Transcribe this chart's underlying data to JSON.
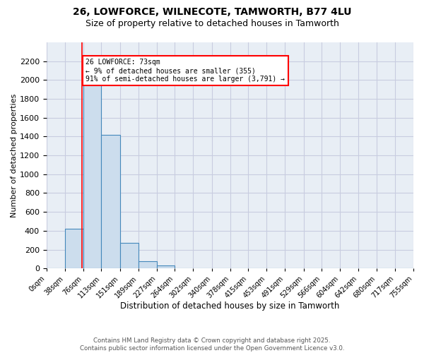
{
  "title_line1": "26, LOWFORCE, WILNECOTE, TAMWORTH, B77 4LU",
  "title_line2": "Size of property relative to detached houses in Tamworth",
  "xlabel": "Distribution of detached houses by size in Tamworth",
  "ylabel": "Number of detached properties",
  "bins": [
    "0sqm",
    "38sqm",
    "76sqm",
    "113sqm",
    "151sqm",
    "189sqm",
    "227sqm",
    "264sqm",
    "302sqm",
    "340sqm",
    "378sqm",
    "415sqm",
    "453sqm",
    "491sqm",
    "529sqm",
    "566sqm",
    "604sqm",
    "642sqm",
    "680sqm",
    "717sqm",
    "755sqm"
  ],
  "bin_edges": [
    0,
    38,
    76,
    113,
    151,
    189,
    227,
    264,
    302,
    340,
    378,
    415,
    453,
    491,
    529,
    566,
    604,
    642,
    680,
    717,
    755
  ],
  "values": [
    5,
    420,
    2100,
    1420,
    270,
    80,
    30,
    5,
    0,
    0,
    0,
    0,
    0,
    0,
    0,
    0,
    0,
    0,
    0,
    0
  ],
  "ylim": [
    0,
    2400
  ],
  "yticks": [
    0,
    200,
    400,
    600,
    800,
    1000,
    1200,
    1400,
    1600,
    1800,
    2000,
    2200
  ],
  "bar_color": "#ccdded",
  "bar_edge_color": "#4488bb",
  "grid_color": "#c8cce0",
  "bg_color": "#e8eef5",
  "property_line_x": 73,
  "annotation_text": "26 LOWFORCE: 73sqm\n← 9% of detached houses are smaller (355)\n91% of semi-detached houses are larger (3,791) →",
  "annotation_box_color": "white",
  "annotation_box_edge": "red",
  "property_line_color": "red",
  "footer_line1": "Contains HM Land Registry data © Crown copyright and database right 2025.",
  "footer_line2": "Contains public sector information licensed under the Open Government Licence v3.0."
}
